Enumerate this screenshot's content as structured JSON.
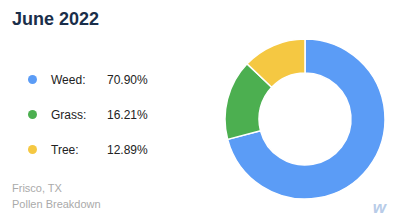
{
  "chart_data": {
    "type": "pie",
    "title": "June 2022",
    "categories": [
      "Weed:",
      "Grass:",
      "Tree:"
    ],
    "values": [
      70.9,
      16.21,
      12.89
    ],
    "value_labels": [
      "70.90%",
      "16.21%",
      "12.89%"
    ],
    "colors": [
      "#5b9cf6",
      "#4caf50",
      "#f5c842"
    ],
    "legend": "left",
    "annotations": [
      "Frisco, TX",
      "Pollen Breakdown",
      "w"
    ]
  }
}
